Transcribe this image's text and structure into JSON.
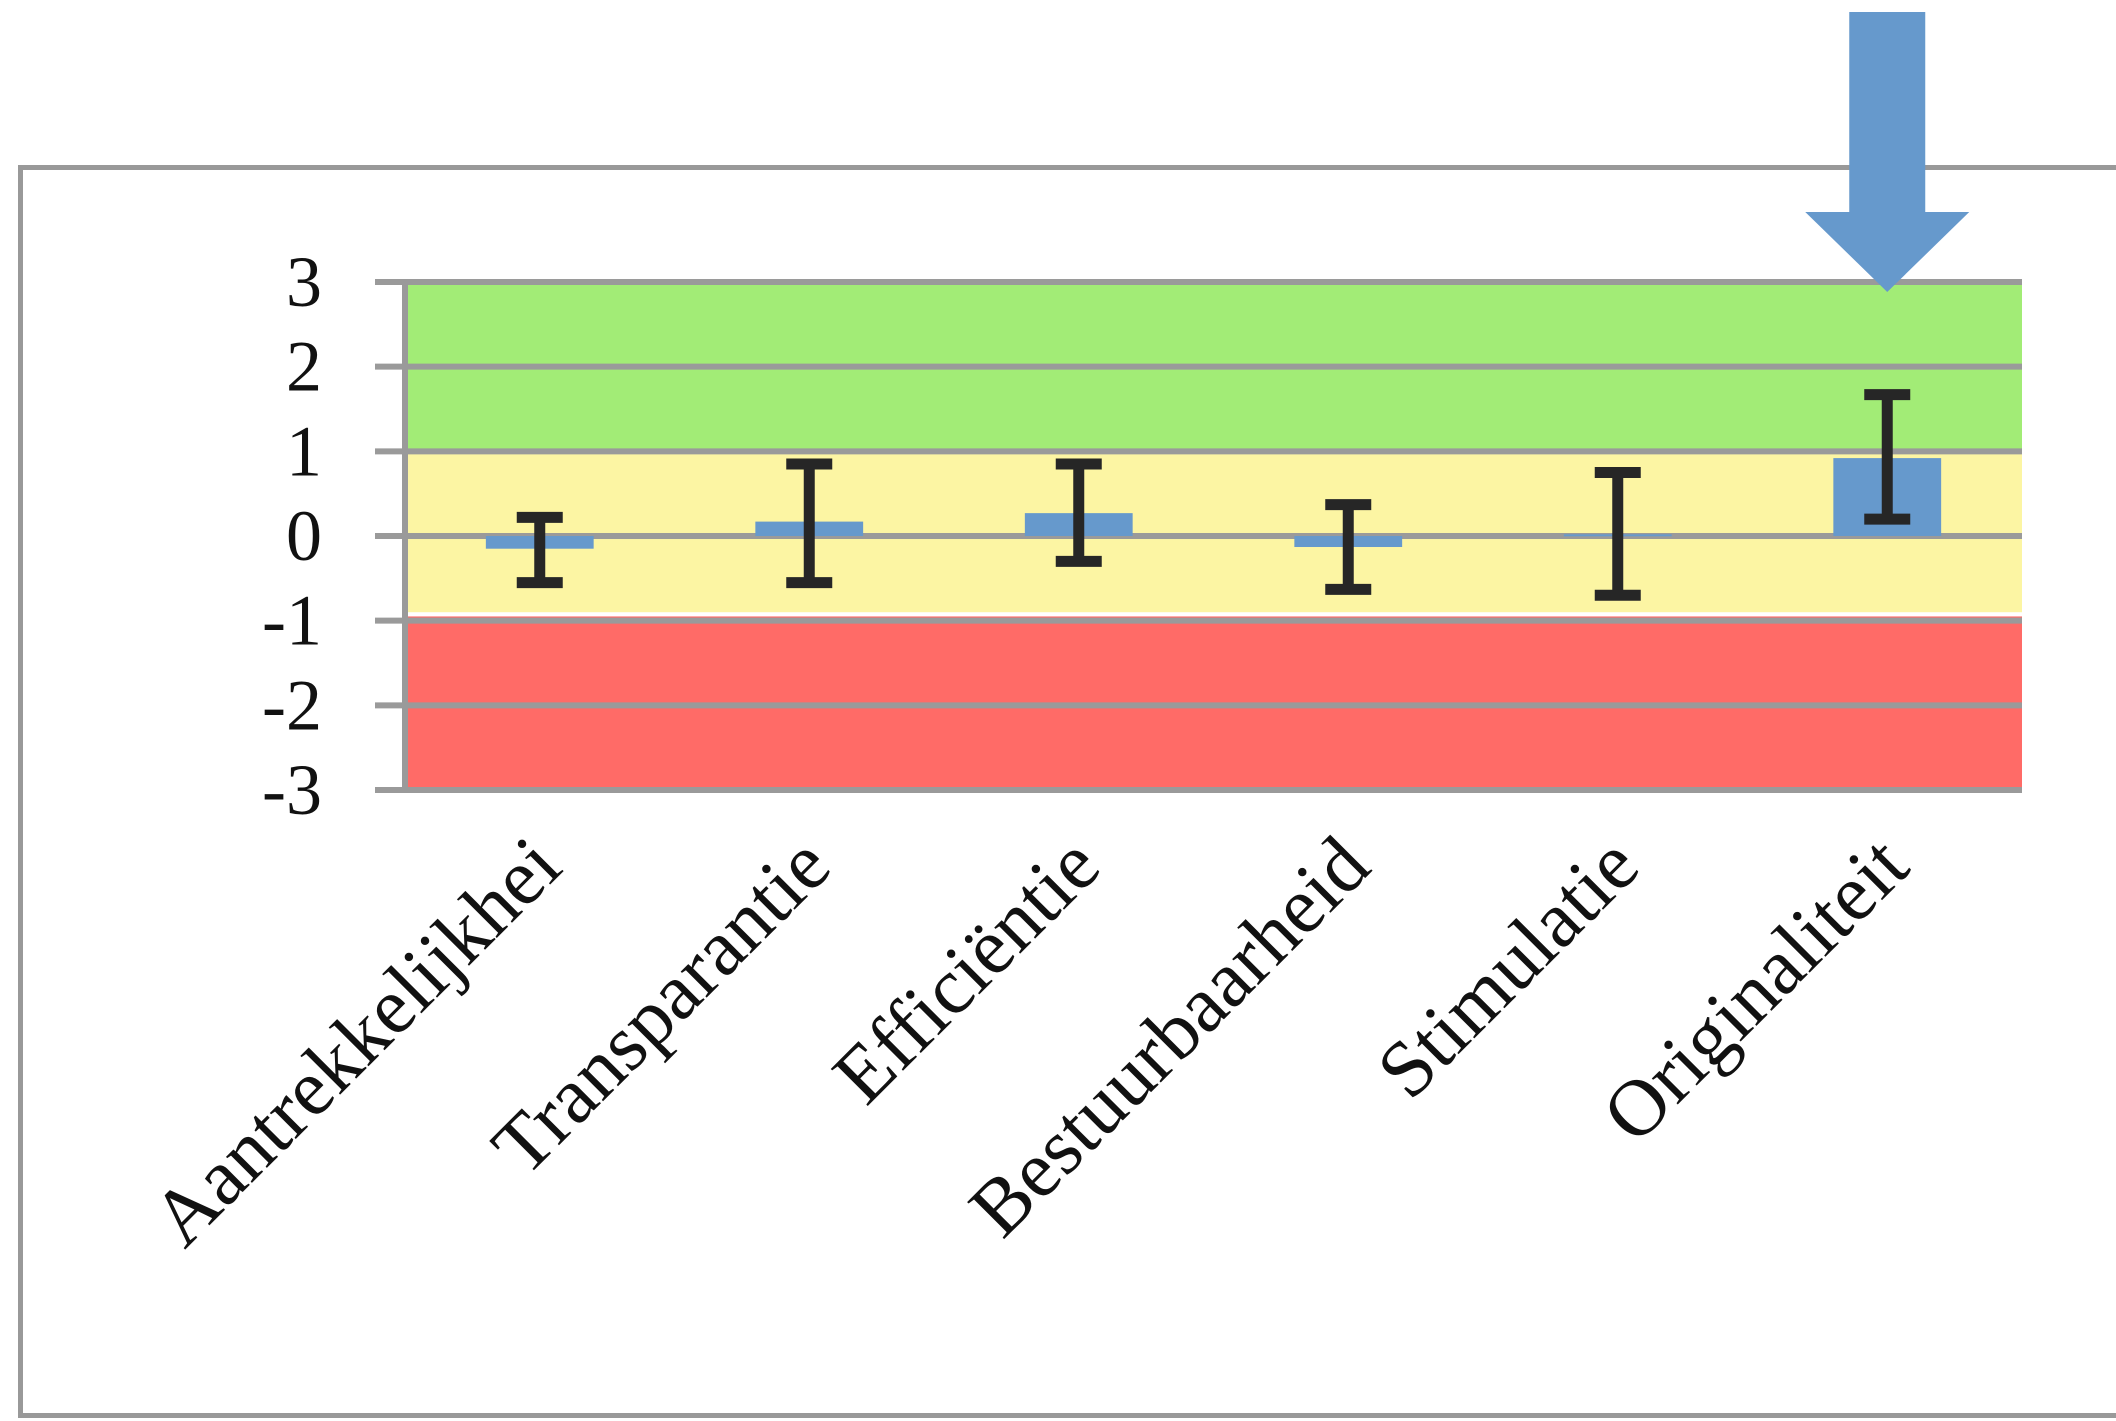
{
  "chart_data": {
    "type": "bar",
    "title": "",
    "xlabel": "",
    "ylabel": "",
    "ylim": [
      -3,
      3
    ],
    "yticks": [
      "3",
      "2",
      "1",
      "0",
      "-1",
      "-2",
      "-3"
    ],
    "categories": [
      "Aantrekkelijkhei",
      "Transparantie",
      "Efficiëntie",
      "Bestuurbaarheid",
      "Stimulatie",
      "Originaliteit"
    ],
    "values": [
      -0.15,
      0.17,
      0.27,
      -0.13,
      0.02,
      0.92
    ],
    "error_low": [
      -0.55,
      -0.55,
      -0.3,
      -0.63,
      -0.7,
      0.2
    ],
    "error_high": [
      0.22,
      0.85,
      0.85,
      0.37,
      0.75,
      1.67
    ],
    "bands": [
      {
        "from": 1,
        "to": 3,
        "color": "#A2EC76"
      },
      {
        "from": -0.9,
        "to": 1,
        "color": "#FCF5A3"
      },
      {
        "from": -3,
        "to": -0.95,
        "color": "#FF6B67"
      }
    ],
    "bar_color": "#6699CC",
    "error_color": "#262626",
    "grid": true,
    "highlight_arrow": {
      "category": "Originaliteit",
      "color": "#6699CC"
    }
  }
}
